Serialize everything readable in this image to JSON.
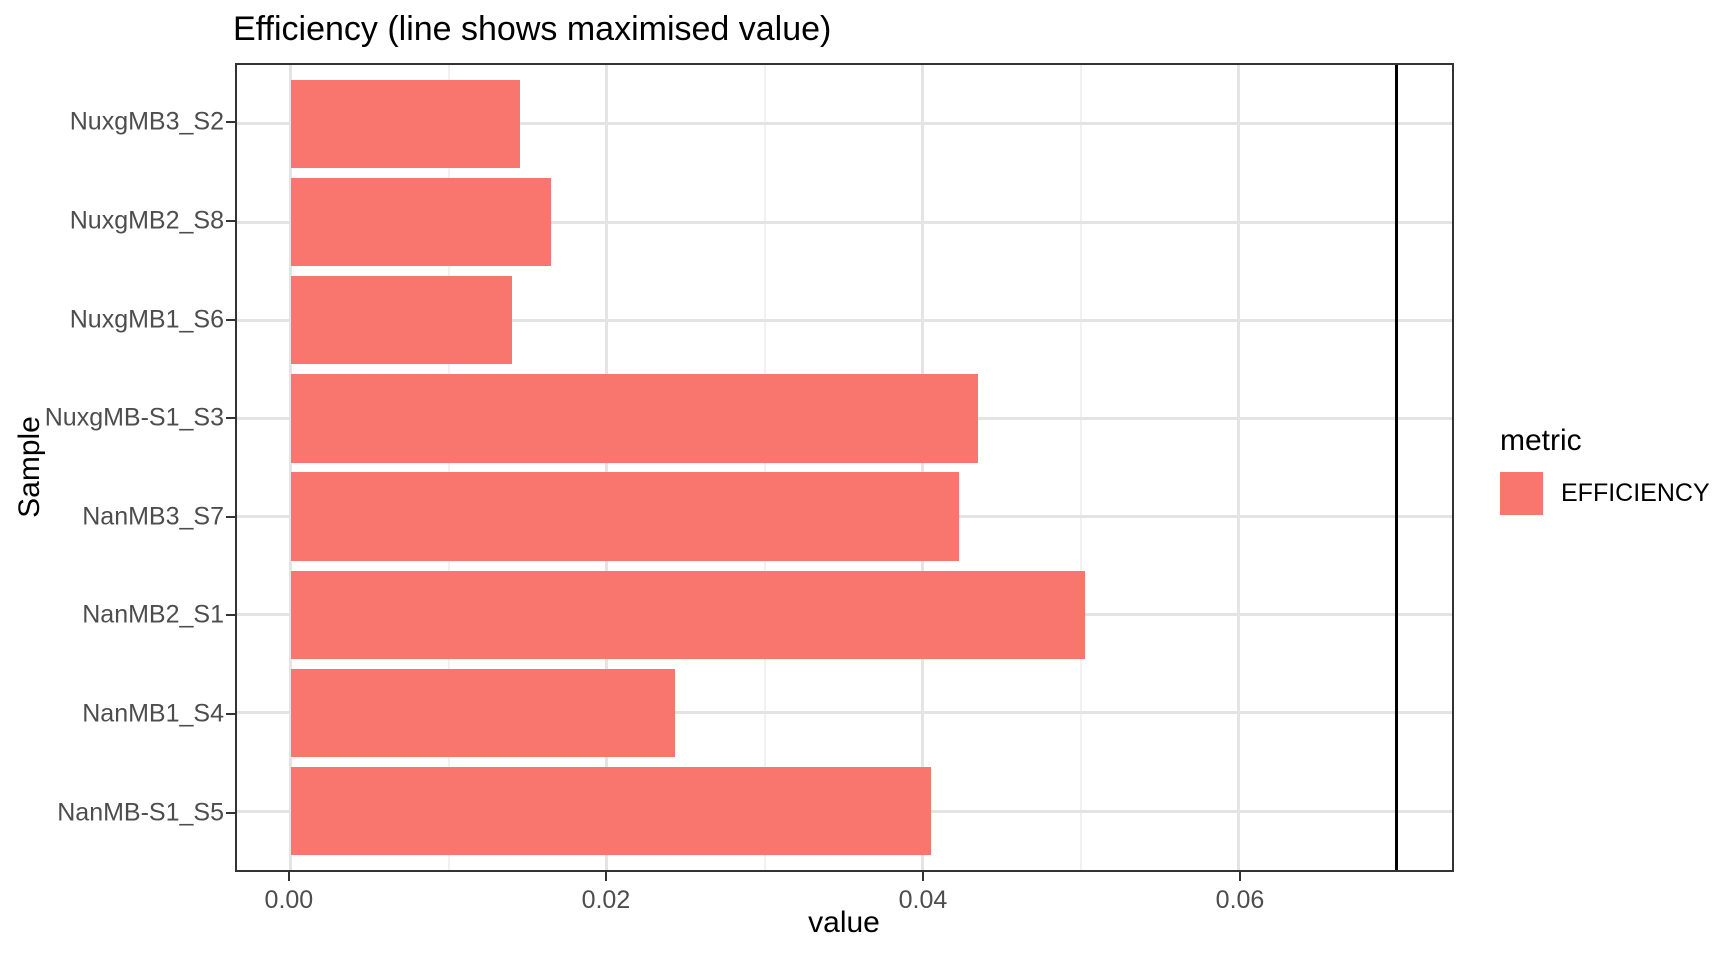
{
  "legend": {
    "title": "metric",
    "items": [
      {
        "label": "EFFICIENCY",
        "color": "#F8766D"
      }
    ]
  },
  "colors": {
    "bar_fill": "#F8766D",
    "panel_border": "#333333",
    "grid_major": "#E4E4E4",
    "grid_minor": "#F1F1F1",
    "axis_text": "#4D4D4D",
    "max_line": "#000000"
  },
  "chart_data": {
    "type": "bar",
    "orientation": "horizontal",
    "title": "Efficiency (line shows maximised value)",
    "xlabel": "value",
    "ylabel": "Sample",
    "categories": [
      "NuxgMB3_S2",
      "NuxgMB2_S8",
      "NuxgMB1_S6",
      "NuxgMB-S1_S3",
      "NanMB3_S7",
      "NanMB2_S1",
      "NanMB1_S4",
      "NanMB-S1_S5"
    ],
    "values": [
      0.0145,
      0.0165,
      0.014,
      0.0435,
      0.0423,
      0.0503,
      0.0243,
      0.0405
    ],
    "series_name": "EFFICIENCY",
    "bar_color": "#F8766D",
    "xlim": [
      -0.0034,
      0.0735
    ],
    "x_major_ticks": [
      {
        "value": 0.0,
        "label": "0.00"
      },
      {
        "value": 0.02,
        "label": "0.02"
      },
      {
        "value": 0.04,
        "label": "0.04"
      },
      {
        "value": 0.06,
        "label": "0.06"
      }
    ],
    "x_minor_ticks": [
      0.01,
      0.03,
      0.05,
      0.07
    ],
    "vline": 0.07,
    "grid": true,
    "legend_position": "right"
  }
}
